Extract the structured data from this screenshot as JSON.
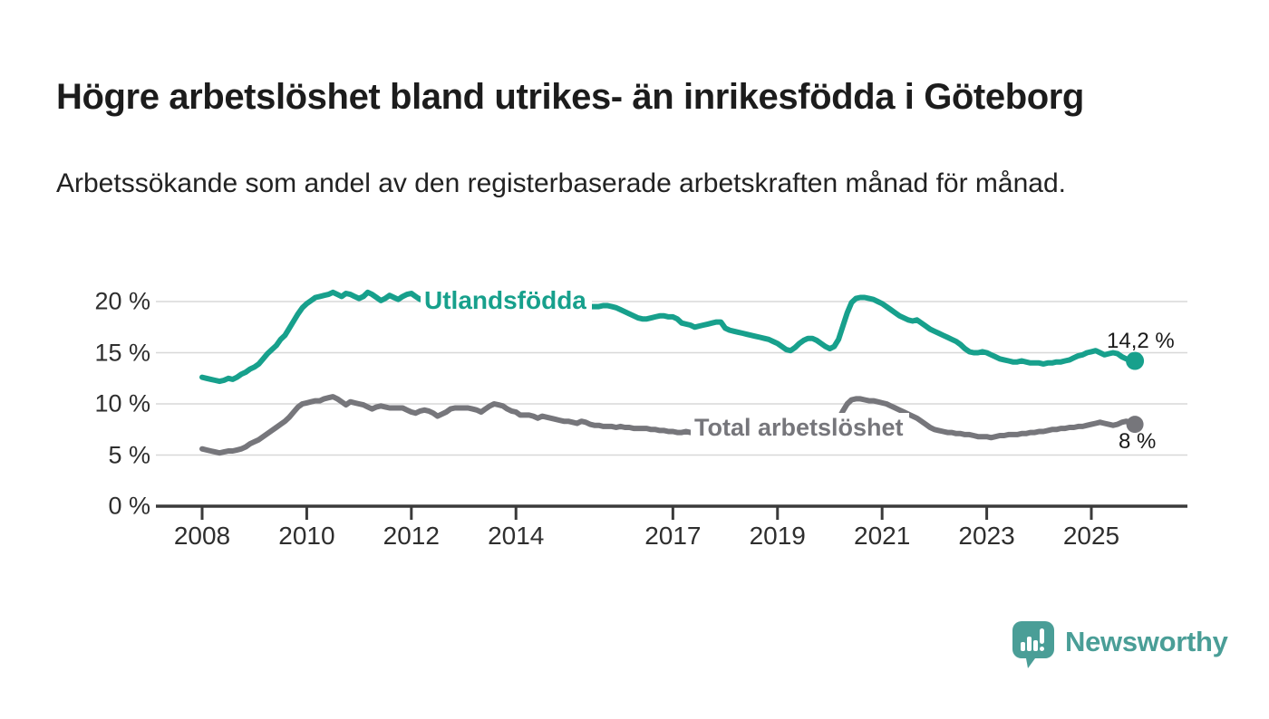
{
  "header": {
    "title": "Högre arbetslöshet bland utrikes- än inrikesfödda i Göteborg",
    "subtitle": "Arbetssökande som andel av den registerbaserade arbetskraften månad för månad."
  },
  "chart_data": {
    "type": "line",
    "title": "Högre arbetslöshet bland utrikes- än inrikesfödda i Göteborg",
    "xlabel": "",
    "ylabel": "",
    "ylim": [
      0,
      22
    ],
    "grid": "horizontal",
    "legend_position": "inline-labels",
    "x_start_year": 2008,
    "points_per_year": 12,
    "y_ticks": [
      {
        "label": "0 %",
        "value": 0
      },
      {
        "label": "5 %",
        "value": 5
      },
      {
        "label": "10 %",
        "value": 10
      },
      {
        "label": "15 %",
        "value": 15
      },
      {
        "label": "20 %",
        "value": 20
      }
    ],
    "x_ticks": [
      {
        "label": "2008",
        "year": 2008
      },
      {
        "label": "2010",
        "year": 2010
      },
      {
        "label": "2012",
        "year": 2012
      },
      {
        "label": "2014",
        "year": 2014
      },
      {
        "label": "2017",
        "year": 2017
      },
      {
        "label": "2019",
        "year": 2019
      },
      {
        "label": "2021",
        "year": 2021
      },
      {
        "label": "2023",
        "year": 2023
      },
      {
        "label": "2025",
        "year": 2025
      }
    ],
    "series": [
      {
        "name": "Utlandsfödda",
        "color": "#17a08c",
        "end_label": "14,2 %",
        "end_value": 14.2,
        "values": [
          12.6,
          12.5,
          12.4,
          12.3,
          12.2,
          12.3,
          12.5,
          12.4,
          12.6,
          12.9,
          13.1,
          13.4,
          13.6,
          13.9,
          14.4,
          14.9,
          15.3,
          15.7,
          16.3,
          16.7,
          17.4,
          18.1,
          18.8,
          19.4,
          19.8,
          20.1,
          20.4,
          20.5,
          20.6,
          20.7,
          20.9,
          20.7,
          20.5,
          20.8,
          20.7,
          20.5,
          20.3,
          20.5,
          20.9,
          20.7,
          20.4,
          20.1,
          20.3,
          20.6,
          20.4,
          20.2,
          20.5,
          20.7,
          20.8,
          20.5,
          20.2,
          20.5,
          20.7,
          20.6,
          20.4,
          20.5,
          20.6,
          20.5,
          20.4,
          20.4,
          20.4,
          20.3,
          20.3,
          20.2,
          20.2,
          20.1,
          20.1,
          20.0,
          20.0,
          19.9,
          19.9,
          19.8,
          19.8,
          19.8,
          19.7,
          19.7,
          19.6,
          19.6,
          19.6,
          19.5,
          19.5,
          19.5,
          19.5,
          19.5,
          19.5,
          19.5,
          19.5,
          19.6,
          19.6,
          19.5,
          19.5,
          19.5,
          19.6,
          19.6,
          19.5,
          19.4,
          19.2,
          19.0,
          18.8,
          18.6,
          18.4,
          18.3,
          18.3,
          18.4,
          18.5,
          18.6,
          18.6,
          18.5,
          18.5,
          18.3,
          17.9,
          17.8,
          17.7,
          17.5,
          17.6,
          17.7,
          17.8,
          17.9,
          18.0,
          18.0,
          17.4,
          17.2,
          17.1,
          17.0,
          16.9,
          16.8,
          16.7,
          16.6,
          16.5,
          16.4,
          16.3,
          16.1,
          15.9,
          15.6,
          15.3,
          15.2,
          15.5,
          15.9,
          16.2,
          16.4,
          16.4,
          16.2,
          15.9,
          15.6,
          15.4,
          15.6,
          16.3,
          17.6,
          18.9,
          19.9,
          20.3,
          20.4,
          20.4,
          20.3,
          20.2,
          20.0,
          19.8,
          19.5,
          19.2,
          18.9,
          18.6,
          18.4,
          18.2,
          18.1,
          18.2,
          17.9,
          17.6,
          17.3,
          17.1,
          16.9,
          16.7,
          16.5,
          16.3,
          16.1,
          15.8,
          15.4,
          15.1,
          15.0,
          15.0,
          15.1,
          15.0,
          14.8,
          14.6,
          14.4,
          14.3,
          14.2,
          14.1,
          14.1,
          14.2,
          14.1,
          14.0,
          14.0,
          14.0,
          13.9,
          14.0,
          14.0,
          14.1,
          14.1,
          14.2,
          14.3,
          14.5,
          14.7,
          14.8,
          15.0,
          15.1,
          15.2,
          15.0,
          14.8,
          14.9,
          15.0,
          14.9,
          14.6,
          14.4,
          14.3,
          14.2
        ]
      },
      {
        "name": "Total arbetslöshet",
        "color": "#76767b",
        "end_label": "8 %",
        "end_value": 8.0,
        "values": [
          5.6,
          5.5,
          5.4,
          5.3,
          5.2,
          5.3,
          5.4,
          5.4,
          5.5,
          5.6,
          5.8,
          6.1,
          6.3,
          6.5,
          6.8,
          7.1,
          7.4,
          7.7,
          8.0,
          8.3,
          8.7,
          9.2,
          9.7,
          10.0,
          10.1,
          10.2,
          10.3,
          10.3,
          10.5,
          10.6,
          10.7,
          10.5,
          10.2,
          9.9,
          10.2,
          10.1,
          10.0,
          9.9,
          9.7,
          9.5,
          9.7,
          9.8,
          9.7,
          9.6,
          9.6,
          9.6,
          9.6,
          9.4,
          9.2,
          9.1,
          9.3,
          9.4,
          9.3,
          9.1,
          8.8,
          9.0,
          9.2,
          9.5,
          9.6,
          9.6,
          9.6,
          9.6,
          9.5,
          9.4,
          9.2,
          9.5,
          9.8,
          10.0,
          9.9,
          9.8,
          9.5,
          9.3,
          9.2,
          8.9,
          8.9,
          8.9,
          8.8,
          8.6,
          8.8,
          8.7,
          8.6,
          8.5,
          8.4,
          8.3,
          8.3,
          8.2,
          8.1,
          8.3,
          8.2,
          8.0,
          7.9,
          7.9,
          7.8,
          7.8,
          7.8,
          7.7,
          7.8,
          7.7,
          7.7,
          7.6,
          7.6,
          7.6,
          7.6,
          7.5,
          7.5,
          7.4,
          7.4,
          7.3,
          7.3,
          7.2,
          7.2,
          7.3,
          7.2,
          7.3,
          7.3,
          7.2,
          7.3,
          7.4,
          7.4,
          7.3,
          7.3,
          7.2,
          7.2,
          7.1,
          7.1,
          7.2,
          7.2,
          7.3,
          7.3,
          7.4,
          7.4,
          7.5,
          7.5,
          7.5,
          7.6,
          7.6,
          7.7,
          7.7,
          7.8,
          7.8,
          7.9,
          7.9,
          7.9,
          7.9,
          8.0,
          8.1,
          8.5,
          9.3,
          10.0,
          10.4,
          10.5,
          10.5,
          10.4,
          10.3,
          10.3,
          10.2,
          10.1,
          10.0,
          9.8,
          9.6,
          9.4,
          9.2,
          9.0,
          8.8,
          8.6,
          8.3,
          8.0,
          7.7,
          7.5,
          7.4,
          7.3,
          7.2,
          7.2,
          7.1,
          7.1,
          7.0,
          7.0,
          6.9,
          6.8,
          6.8,
          6.8,
          6.7,
          6.8,
          6.9,
          6.9,
          7.0,
          7.0,
          7.0,
          7.1,
          7.1,
          7.2,
          7.2,
          7.3,
          7.3,
          7.4,
          7.5,
          7.5,
          7.6,
          7.6,
          7.7,
          7.7,
          7.8,
          7.8,
          7.9,
          8.0,
          8.1,
          8.2,
          8.1,
          8.0,
          7.9,
          8.0,
          8.2,
          8.3,
          8.2,
          8.0
        ]
      }
    ],
    "colors": {
      "grid": "#d8d8d8",
      "axis": "#3a3a3a",
      "tick_text": "#2e2e2e"
    }
  },
  "footer": {
    "brand": "Newsworthy",
    "brand_color": "#4a9e97",
    "logo_icon": "bar-chart-speech-bubble-icon"
  }
}
